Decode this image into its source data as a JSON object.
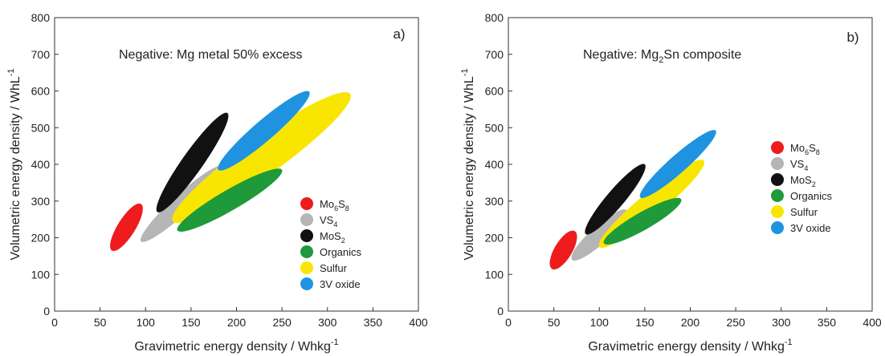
{
  "chart_data": [
    {
      "type": "scatter",
      "panel_label": "a)",
      "annotation": "Negative: Mg metal 50% excess",
      "xlabel": "Gravimetric energy density / Whkg",
      "xlabel_sup": "-1",
      "ylabel": "Volumetric energy density / WhL",
      "ylabel_sup": "-1",
      "xlim": [
        0,
        400
      ],
      "ylim": [
        0,
        800
      ],
      "xticks": [
        0,
        50,
        100,
        150,
        200,
        250,
        300,
        350,
        400
      ],
      "yticks": [
        0,
        100,
        200,
        300,
        400,
        500,
        600,
        700,
        800
      ],
      "grid": false,
      "legend_position": "bottom-right",
      "series": [
        {
          "name": "Mo6S8",
          "name_base": "Mo",
          "name_sub1": "6",
          "name_mid": "S",
          "name_sub2": "8",
          "color": "#ee1c1c",
          "region": [
            [
              63,
              165
            ],
            [
              95,
              292
            ]
          ]
        },
        {
          "name": "VS4",
          "name_base": "VS",
          "name_sub1": "4",
          "name_mid": "",
          "name_sub2": "",
          "color": "#b5b5b5",
          "region": [
            [
              95,
              190
            ],
            [
              185,
              395
            ]
          ]
        },
        {
          "name": "MoS2",
          "name_base": "MoS",
          "name_sub1": "2",
          "name_mid": "",
          "name_sub2": "",
          "color": "#111111",
          "region": [
            [
              113,
              270
            ],
            [
              190,
              540
            ]
          ]
        },
        {
          "name": "Organics",
          "name_base": "Organics",
          "name_sub1": "",
          "name_mid": "",
          "name_sub2": "",
          "color": "#1e9a3a",
          "region": [
            [
              135,
              220
            ],
            [
              250,
              385
            ]
          ]
        },
        {
          "name": "Sulfur",
          "name_base": "Sulfur",
          "name_sub1": "",
          "name_mid": "",
          "name_sub2": "",
          "color": "#f8e600",
          "region": [
            [
              130,
              245
            ],
            [
              325,
              592
            ]
          ]
        },
        {
          "name": "3V oxide",
          "name_base": "3V oxide",
          "name_sub1": "",
          "name_mid": "",
          "name_sub2": "",
          "color": "#1f93e0",
          "region": [
            [
              180,
              385
            ],
            [
              280,
              598
            ]
          ]
        }
      ]
    },
    {
      "type": "scatter",
      "panel_label": "b)",
      "annotation": "Negative: Mg",
      "annotation_sub": "2",
      "annotation_tail": "Sn composite",
      "xlabel": "Gravimetric energy density / Whkg",
      "xlabel_sup": "-1",
      "ylabel": "Volumetric energy density / WhL",
      "ylabel_sup": "-1",
      "xlim": [
        0,
        400
      ],
      "ylim": [
        0,
        800
      ],
      "xticks": [
        0,
        50,
        100,
        150,
        200,
        250,
        300,
        350,
        400
      ],
      "yticks": [
        0,
        100,
        200,
        300,
        400,
        500,
        600,
        700,
        800
      ],
      "grid": false,
      "legend_position": "right",
      "series": [
        {
          "name": "Mo6S8",
          "name_base": "Mo",
          "name_sub1": "6",
          "name_mid": "S",
          "name_sub2": "8",
          "color": "#ee1c1c",
          "region": [
            [
              48,
              115
            ],
            [
              73,
              218
            ]
          ]
        },
        {
          "name": "VS4",
          "name_base": "VS",
          "name_sub1": "4",
          "name_mid": "",
          "name_sub2": "",
          "color": "#b5b5b5",
          "region": [
            [
              70,
              140
            ],
            [
              130,
              275
            ]
          ]
        },
        {
          "name": "MoS2",
          "name_base": "MoS",
          "name_sub1": "2",
          "name_mid": "",
          "name_sub2": "",
          "color": "#111111",
          "region": [
            [
              85,
              210
            ],
            [
              150,
              400
            ]
          ]
        },
        {
          "name": "Organics",
          "name_base": "Organics",
          "name_sub1": "",
          "name_mid": "",
          "name_sub2": "",
          "color": "#1e9a3a",
          "region": [
            [
              105,
              185
            ],
            [
              190,
              305
            ]
          ]
        },
        {
          "name": "Sulfur",
          "name_base": "Sulfur",
          "name_sub1": "",
          "name_mid": "",
          "name_sub2": "",
          "color": "#f8e600",
          "region": [
            [
              100,
              175
            ],
            [
              215,
              410
            ]
          ]
        },
        {
          "name": "3V oxide",
          "name_base": "3V oxide",
          "name_sub1": "",
          "name_mid": "",
          "name_sub2": "",
          "color": "#1f93e0",
          "region": [
            [
              145,
              310
            ],
            [
              228,
              492
            ]
          ]
        }
      ]
    }
  ]
}
